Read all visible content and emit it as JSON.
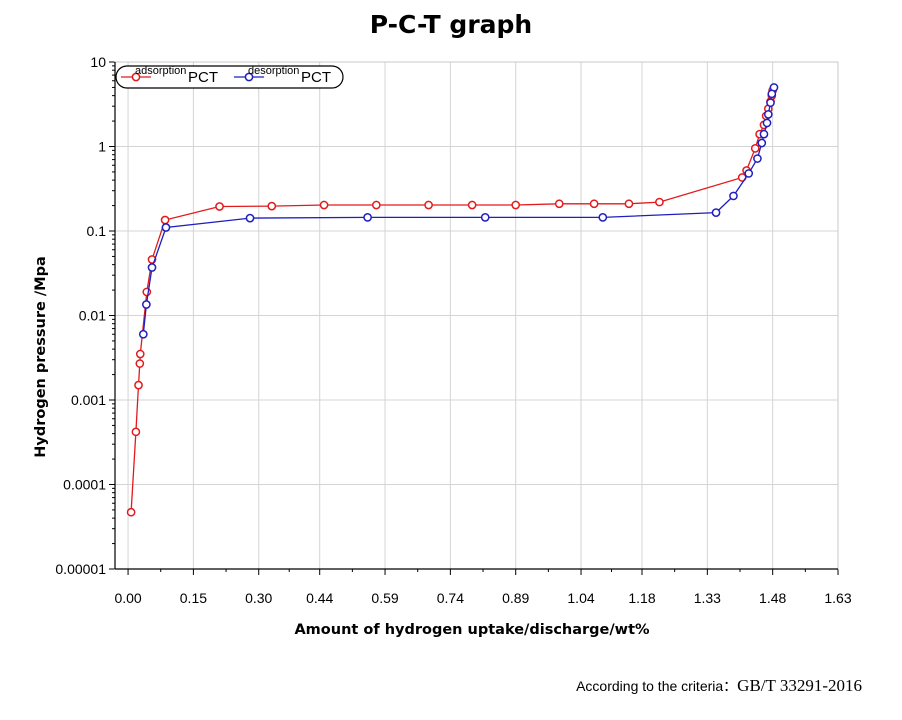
{
  "chart_data": {
    "type": "line",
    "title": "P-C-T graph",
    "xlabel": "Amount of hydrogen uptake/discharge/wt%",
    "ylabel": "Hydrogen pressure /Mpa",
    "y_scale": "log",
    "xlim": [
      -0.03,
      1.63
    ],
    "ylim": [
      1e-05,
      10
    ],
    "x_ticks": [
      "0.00",
      "0.15",
      "0.30",
      "0.44",
      "0.59",
      "0.74",
      "0.89",
      "1.04",
      "1.18",
      "1.33",
      "1.48",
      "1.63"
    ],
    "y_ticks": [
      "10",
      "1",
      "0.1",
      "0.01",
      "0.001",
      "0.0001",
      "0.00001"
    ],
    "grid": true,
    "legend_position": "top-left",
    "series": [
      {
        "name_prefix": "adsorption",
        "name_suffix": "PCT",
        "color": "#e31a1c",
        "x": [
          0.007,
          0.018,
          0.024,
          0.027,
          0.028,
          0.043,
          0.055,
          0.085,
          0.21,
          0.33,
          0.45,
          0.57,
          0.69,
          0.79,
          0.89,
          0.99,
          1.07,
          1.15,
          1.22,
          1.41,
          1.42,
          1.44,
          1.45,
          1.46,
          1.465,
          1.47,
          1.475,
          1.478,
          1.48
        ],
        "y": [
          4.7e-05,
          0.00042,
          0.0015,
          0.0027,
          0.0035,
          0.019,
          0.046,
          0.135,
          0.195,
          0.197,
          0.203,
          0.203,
          0.203,
          0.203,
          0.203,
          0.21,
          0.21,
          0.21,
          0.22,
          0.43,
          0.52,
          0.95,
          1.4,
          1.8,
          2.3,
          2.8,
          3.4,
          4.0,
          4.6
        ]
      },
      {
        "name_prefix": "desorption",
        "name_suffix": "PCT",
        "color": "#1f1fbf",
        "x": [
          1.483,
          1.478,
          1.475,
          1.47,
          1.467,
          1.46,
          1.455,
          1.445,
          1.425,
          1.39,
          1.35,
          1.09,
          0.82,
          0.55,
          0.28,
          0.087,
          0.055,
          0.042,
          0.035
        ],
        "y": [
          5.0,
          4.2,
          3.3,
          2.4,
          1.9,
          1.4,
          1.1,
          0.72,
          0.48,
          0.26,
          0.165,
          0.145,
          0.145,
          0.145,
          0.142,
          0.11,
          0.037,
          0.0135,
          0.006
        ]
      }
    ]
  },
  "footer": {
    "text": "According to the criteria：",
    "standard": "GB/T 33291-2016"
  }
}
